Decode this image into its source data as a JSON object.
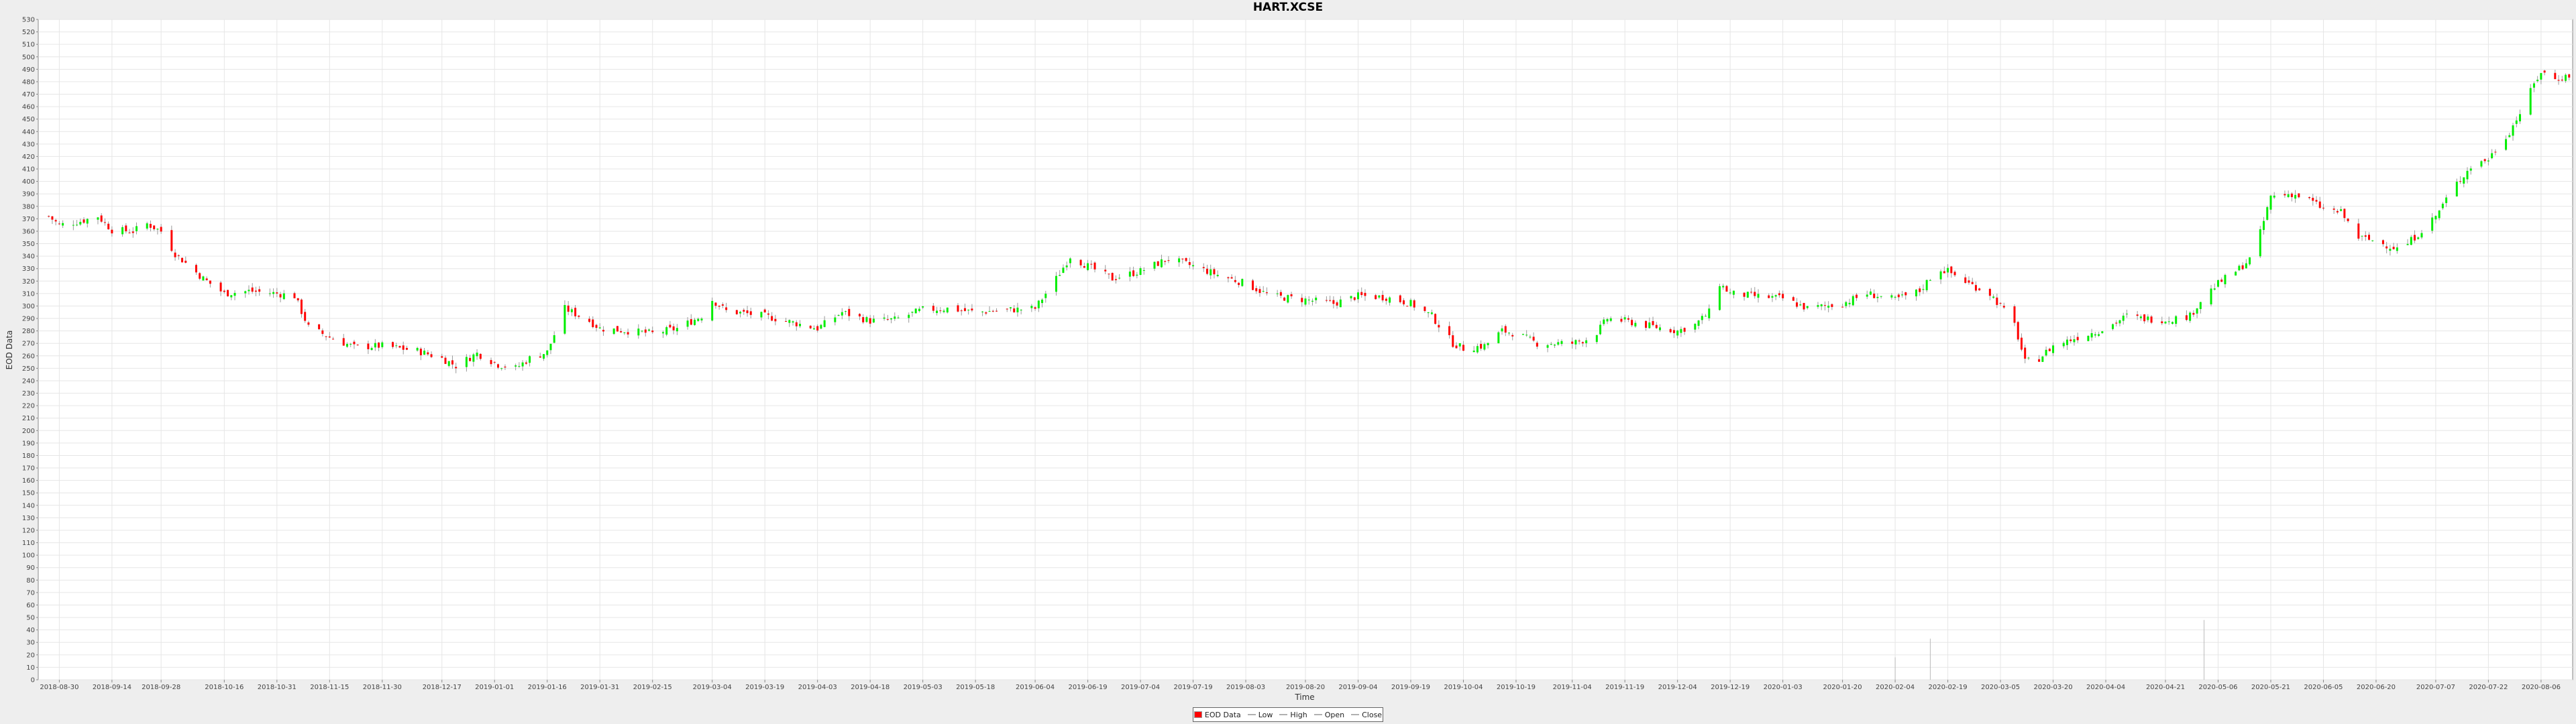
{
  "chart_data": {
    "type": "candlestick",
    "title": "HART.XCSE",
    "xlabel": "Time",
    "ylabel": "EOD Data",
    "ylim": [
      0,
      530
    ],
    "y_step": 10,
    "x_range": [
      "2018-08-24",
      "2020-08-15"
    ],
    "x_ticks": [
      "2018-08-30",
      "2018-09-14",
      "2018-09-28",
      "2018-10-16",
      "2018-10-31",
      "2018-11-15",
      "2018-11-30",
      "2018-12-17",
      "2019-01-01",
      "2019-01-16",
      "2019-01-31",
      "2019-02-15",
      "2019-03-04",
      "2019-03-19",
      "2019-04-03",
      "2019-04-18",
      "2019-05-03",
      "2019-05-18",
      "2019-06-04",
      "2019-06-19",
      "2019-07-04",
      "2019-07-19",
      "2019-08-03",
      "2019-08-20",
      "2019-09-04",
      "2019-09-19",
      "2019-10-04",
      "2019-10-19",
      "2019-11-04",
      "2019-11-19",
      "2019-12-04",
      "2019-12-19",
      "2020-01-03",
      "2020-01-20",
      "2020-02-04",
      "2020-02-19",
      "2020-03-05",
      "2020-03-20",
      "2020-04-04",
      "2020-04-21",
      "2020-05-06",
      "2020-05-21",
      "2020-06-05",
      "2020-06-20",
      "2020-07-07",
      "2020-07-22",
      "2020-08-06"
    ],
    "grid": true,
    "legend_position": "bottom-center",
    "colors": {
      "up": "#00ee00",
      "down": "#ff0000",
      "wick": "#999999",
      "background": "#ffffff",
      "grid": "#e6e6e6"
    },
    "close_anchors": [
      [
        "2018-08-27",
        372
      ],
      [
        "2018-08-30",
        365
      ],
      [
        "2018-09-05",
        368
      ],
      [
        "2018-09-10",
        372
      ],
      [
        "2018-09-14",
        361
      ],
      [
        "2018-09-20",
        360
      ],
      [
        "2018-09-24",
        366
      ],
      [
        "2018-09-28",
        360
      ],
      [
        "2018-10-02",
        342
      ],
      [
        "2018-10-10",
        322
      ],
      [
        "2018-10-16",
        310
      ],
      [
        "2018-10-23",
        312
      ],
      [
        "2018-10-31",
        310
      ],
      [
        "2018-11-05",
        308
      ],
      [
        "2018-11-09",
        283
      ],
      [
        "2018-11-15",
        275
      ],
      [
        "2018-11-22",
        267
      ],
      [
        "2018-11-30",
        268
      ],
      [
        "2018-12-10",
        264
      ],
      [
        "2018-12-17",
        258
      ],
      [
        "2018-12-21",
        252
      ],
      [
        "2018-12-27",
        262
      ],
      [
        "2019-01-02",
        253
      ],
      [
        "2019-01-07",
        250
      ],
      [
        "2019-01-11",
        258
      ],
      [
        "2019-01-16",
        263
      ],
      [
        "2019-01-21",
        298
      ],
      [
        "2019-01-28",
        288
      ],
      [
        "2019-01-31",
        282
      ],
      [
        "2019-02-08",
        280
      ],
      [
        "2019-02-15",
        278
      ],
      [
        "2019-02-22",
        282
      ],
      [
        "2019-03-01",
        292
      ],
      [
        "2019-03-04",
        305
      ],
      [
        "2019-03-08",
        296
      ],
      [
        "2019-03-19",
        292
      ],
      [
        "2019-03-28",
        286
      ],
      [
        "2019-04-03",
        282
      ],
      [
        "2019-04-10",
        295
      ],
      [
        "2019-04-18",
        288
      ],
      [
        "2019-04-25",
        289
      ],
      [
        "2019-05-03",
        297
      ],
      [
        "2019-05-10",
        298
      ],
      [
        "2019-05-18",
        295
      ],
      [
        "2019-05-28",
        297
      ],
      [
        "2019-06-04",
        298
      ],
      [
        "2019-06-10",
        322
      ],
      [
        "2019-06-14",
        340
      ],
      [
        "2019-06-19",
        332
      ],
      [
        "2019-06-26",
        322
      ],
      [
        "2019-07-04",
        328
      ],
      [
        "2019-07-12",
        338
      ],
      [
        "2019-07-19",
        332
      ],
      [
        "2019-07-26",
        325
      ],
      [
        "2019-08-03",
        318
      ],
      [
        "2019-08-10",
        308
      ],
      [
        "2019-08-20",
        305
      ],
      [
        "2019-08-28",
        302
      ],
      [
        "2019-09-04",
        308
      ],
      [
        "2019-09-12",
        307
      ],
      [
        "2019-09-19",
        302
      ],
      [
        "2019-09-25",
        292
      ],
      [
        "2019-10-01",
        270
      ],
      [
        "2019-10-04",
        266
      ],
      [
        "2019-10-10",
        268
      ],
      [
        "2019-10-15",
        280
      ],
      [
        "2019-10-19",
        278
      ],
      [
        "2019-10-25",
        270
      ],
      [
        "2019-11-04",
        270
      ],
      [
        "2019-11-10",
        275
      ],
      [
        "2019-11-14",
        290
      ],
      [
        "2019-11-19",
        288
      ],
      [
        "2019-11-26",
        284
      ],
      [
        "2019-12-04",
        280
      ],
      [
        "2019-12-09",
        285
      ],
      [
        "2019-12-13",
        295
      ],
      [
        "2019-12-16",
        318
      ],
      [
        "2019-12-19",
        310
      ],
      [
        "2019-12-26",
        308
      ],
      [
        "2020-01-03",
        306
      ],
      [
        "2020-01-10",
        298
      ],
      [
        "2020-01-20",
        302
      ],
      [
        "2020-01-27",
        310
      ],
      [
        "2020-02-04",
        305
      ],
      [
        "2020-02-11",
        312
      ],
      [
        "2020-02-16",
        330
      ],
      [
        "2020-02-19",
        328
      ],
      [
        "2020-02-25",
        318
      ],
      [
        "2020-03-02",
        310
      ],
      [
        "2020-03-05",
        300
      ],
      [
        "2020-03-09",
        285
      ],
      [
        "2020-03-12",
        255
      ],
      [
        "2020-03-16",
        258
      ],
      [
        "2020-03-20",
        268
      ],
      [
        "2020-03-27",
        275
      ],
      [
        "2020-04-04",
        282
      ],
      [
        "2020-04-10",
        292
      ],
      [
        "2020-04-14",
        290
      ],
      [
        "2020-04-21",
        289
      ],
      [
        "2020-04-28",
        292
      ],
      [
        "2020-05-02",
        308
      ],
      [
        "2020-05-06",
        318
      ],
      [
        "2020-05-12",
        330
      ],
      [
        "2020-05-16",
        340
      ],
      [
        "2020-05-19",
        368
      ],
      [
        "2020-05-21",
        388
      ],
      [
        "2020-05-27",
        390
      ],
      [
        "2020-06-01",
        385
      ],
      [
        "2020-06-05",
        378
      ],
      [
        "2020-06-10",
        375
      ],
      [
        "2020-06-15",
        355
      ],
      [
        "2020-06-20",
        352
      ],
      [
        "2020-06-27",
        345
      ],
      [
        "2020-07-02",
        358
      ],
      [
        "2020-07-07",
        372
      ],
      [
        "2020-07-12",
        395
      ],
      [
        "2020-07-17",
        412
      ],
      [
        "2020-07-22",
        418
      ],
      [
        "2020-07-28",
        440
      ],
      [
        "2020-08-01",
        460
      ],
      [
        "2020-08-04",
        478
      ],
      [
        "2020-08-06",
        488
      ],
      [
        "2020-08-10",
        482
      ],
      [
        "2020-08-14",
        485
      ]
    ],
    "volume_spikes": [
      [
        "2020-02-04",
        18
      ],
      [
        "2020-02-14",
        33
      ],
      [
        "2020-05-02",
        48
      ]
    ]
  },
  "legend": {
    "items": [
      {
        "label": "EOD Data",
        "kind": "swatch",
        "color": "#ff0000"
      },
      {
        "label": "Low",
        "kind": "line",
        "color": "#b0b0b0"
      },
      {
        "label": "High",
        "kind": "line",
        "color": "#b0b0b0"
      },
      {
        "label": "Open",
        "kind": "line",
        "color": "#b0b0b0"
      },
      {
        "label": "Close",
        "kind": "line",
        "color": "#b0b0b0"
      }
    ]
  }
}
